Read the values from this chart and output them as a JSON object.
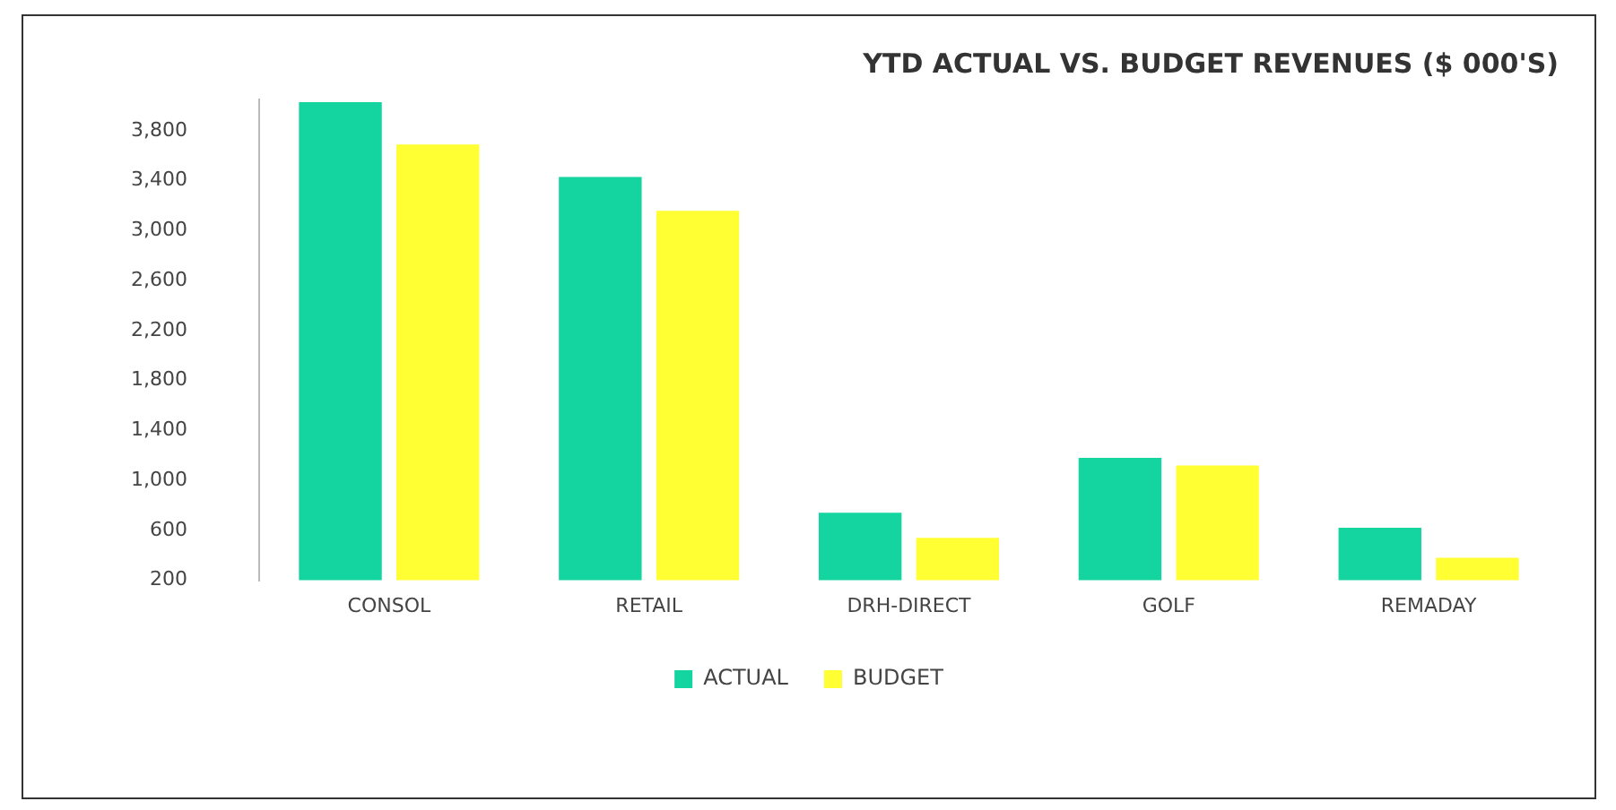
{
  "chart_data": {
    "type": "bar",
    "title": "YTD ACTUAL VS. BUDGET REVENUES ($ 000'S)",
    "categories": [
      "CONSOL",
      "RETAIL",
      "DRH-DIRECT",
      "GOLF",
      "REMADAY"
    ],
    "series": [
      {
        "name": "ACTUAL",
        "color": "#14d4a0",
        "values": [
          4030,
          3430,
          740,
          1180,
          620
        ]
      },
      {
        "name": "BUDGET",
        "color": "#ffff33",
        "values": [
          3690,
          3160,
          540,
          1120,
          380
        ]
      }
    ],
    "ylim": [
      200,
      4050
    ],
    "yticks": [
      {
        "value": 200,
        "label": "200"
      },
      {
        "value": 600,
        "label": "600"
      },
      {
        "value": 1000,
        "label": "1,000"
      },
      {
        "value": 1400,
        "label": "1,400"
      },
      {
        "value": 1800,
        "label": "1,800"
      },
      {
        "value": 2200,
        "label": "2,200"
      },
      {
        "value": 2600,
        "label": "2,600"
      },
      {
        "value": 3000,
        "label": "3,000"
      },
      {
        "value": 3400,
        "label": "3,400"
      },
      {
        "value": 3800,
        "label": "3,800"
      }
    ],
    "grid": false,
    "legend": "bottom"
  }
}
